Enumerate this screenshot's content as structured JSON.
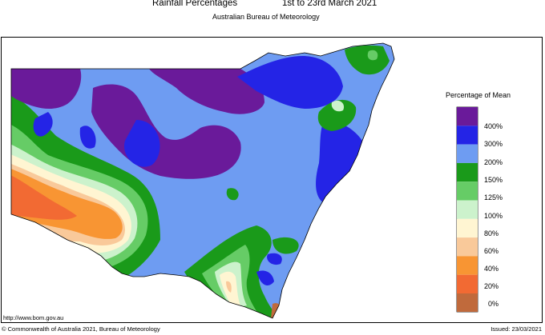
{
  "header": {
    "title": "Rainfall Percentages",
    "dates": "1st to 23rd March 2021",
    "subtitle": "Australian Bureau of Meteorology"
  },
  "legend": {
    "title": "Percentage of Mean",
    "items": [
      {
        "label": "400%",
        "color": "#6a1a9a"
      },
      {
        "label": "300%",
        "color": "#2424e6"
      },
      {
        "label": "200%",
        "color": "#6e9cf2"
      },
      {
        "label": "150%",
        "color": "#1a9a1a"
      },
      {
        "label": "125%",
        "color": "#66cc66"
      },
      {
        "label": "100%",
        "color": "#ccf2cc"
      },
      {
        "label": "80%",
        "color": "#fff5d2"
      },
      {
        "label": "60%",
        "color": "#f9c99a"
      },
      {
        "label": "40%",
        "color": "#f89533"
      },
      {
        "label": "20%",
        "color": "#f26a33"
      },
      {
        "label": "0%",
        "color": "#c06a3c"
      }
    ]
  },
  "footer": {
    "url": "http://www.bom.gov.au",
    "copyright": "© Commonwealth of Australia 2021, Bureau of Meteorology",
    "issued": "Issued: 23/03/2021"
  }
}
